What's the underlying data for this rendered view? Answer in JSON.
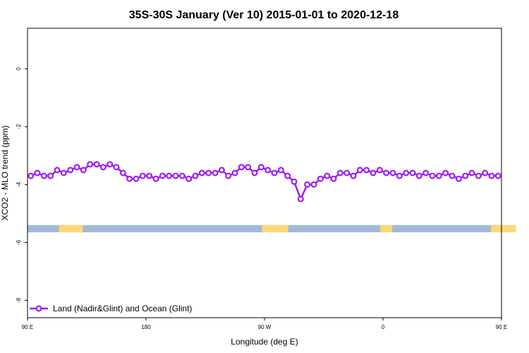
{
  "chart_data": {
    "type": "line",
    "title": "35S-30S January (Ver 10)   2015-01-01 to 2020-12-18",
    "xlabel": "Longitude (deg E)",
    "ylabel": "XCO2 - MLO trend (ppm)",
    "xlim": [
      90,
      450
    ],
    "ylim": [
      -8.6,
      1.4
    ],
    "x_ticks": [
      {
        "value": 90,
        "label": "90 E"
      },
      {
        "value": 180,
        "label": "180"
      },
      {
        "value": 270,
        "label": "90 W"
      },
      {
        "value": 360,
        "label": "0"
      },
      {
        "value": 450,
        "label": "90 E"
      }
    ],
    "y_ticks": [
      {
        "value": 0,
        "label": "0"
      },
      {
        "value": -2,
        "label": "-2"
      },
      {
        "value": -4,
        "label": "-4"
      },
      {
        "value": -6,
        "label": "-6"
      },
      {
        "value": -8,
        "label": "-8"
      }
    ],
    "series": [
      {
        "name": "Land (Nadir&Glint) and Ocean (Glint)",
        "color": "#9b1ff0",
        "x": [
          92.5,
          97.5,
          102.5,
          107.5,
          112.5,
          117.5,
          122.5,
          127.5,
          132.5,
          137.5,
          142.5,
          147.5,
          152.5,
          157.5,
          162.5,
          167.5,
          172.5,
          177.5,
          182.5,
          187.5,
          192.5,
          197.5,
          202.5,
          207.5,
          212.5,
          217.5,
          222.5,
          227.5,
          232.5,
          237.5,
          242.5,
          247.5,
          252.5,
          257.5,
          262.5,
          267.5,
          272.5,
          277.5,
          282.5,
          287.5,
          292.5,
          297.5,
          302.5,
          307.5,
          312.5,
          317.5,
          322.5,
          327.5,
          332.5,
          337.5,
          342.5,
          347.5,
          352.5,
          357.5,
          362.5,
          367.5,
          372.5,
          377.5,
          382.5,
          387.5,
          392.5,
          397.5,
          402.5,
          407.5,
          412.5,
          417.5,
          422.5,
          427.5,
          432.5,
          437.5,
          442.5,
          447.5
        ],
        "y": [
          -3.7,
          -3.6,
          -3.7,
          -3.7,
          -3.5,
          -3.6,
          -3.5,
          -3.4,
          -3.5,
          -3.3,
          -3.3,
          -3.4,
          -3.3,
          -3.4,
          -3.6,
          -3.8,
          -3.8,
          -3.7,
          -3.7,
          -3.8,
          -3.7,
          -3.7,
          -3.7,
          -3.7,
          -3.8,
          -3.7,
          -3.6,
          -3.6,
          -3.6,
          -3.5,
          -3.7,
          -3.6,
          -3.4,
          -3.4,
          -3.6,
          -3.4,
          -3.5,
          -3.6,
          -3.5,
          -3.7,
          -3.9,
          -4.5,
          -4.0,
          -4.0,
          -3.8,
          -3.7,
          -3.8,
          -3.6,
          -3.6,
          -3.7,
          -3.5,
          -3.5,
          -3.6,
          -3.5,
          -3.6,
          -3.6,
          -3.7,
          -3.6,
          -3.6,
          -3.7,
          -3.6,
          -3.7,
          -3.7,
          -3.6,
          -3.7,
          -3.8,
          -3.7,
          -3.6,
          -3.7,
          -3.6,
          -3.7,
          -3.7
        ]
      }
    ],
    "legend_position": "bottom-left",
    "grid": false,
    "surface_strip": {
      "y_range": [
        -5.65,
        -5.4
      ],
      "ocean_color": "#a3b9d6",
      "land_color": "#fbd877",
      "land_x_ranges": [
        [
          114,
          132
        ],
        [
          268,
          288
        ],
        [
          358,
          367
        ],
        [
          442,
          461
        ]
      ]
    }
  }
}
